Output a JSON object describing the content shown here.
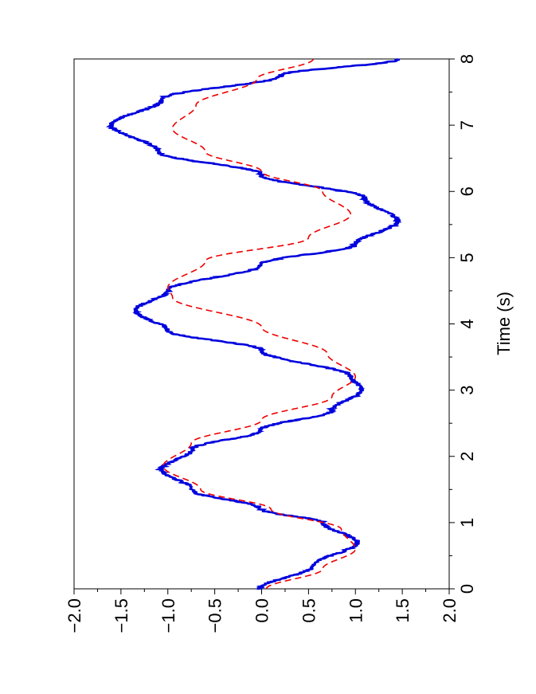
{
  "chart_data": {
    "type": "line",
    "orientation": "rotated-90-ccw",
    "xlabel": "Time (s)",
    "ylabel": "",
    "xlim": [
      0,
      8
    ],
    "ylim": [
      -2.0,
      2.0
    ],
    "x_ticks": [
      "0",
      "1",
      "2",
      "3",
      "4",
      "5",
      "6",
      "7",
      "8"
    ],
    "y_ticks": [
      "−2.0",
      "−1.5",
      "−1.0",
      "−0.5",
      "0.0",
      "0.5",
      "1.0",
      "1.5",
      "2.0"
    ],
    "grid": false,
    "series": [
      {
        "style": "solid",
        "color": "#0000dd",
        "noisy": true,
        "points": [
          [
            0,
            -0.02
          ],
          [
            0.35,
            0.55
          ],
          [
            0.7,
            1.02
          ],
          [
            1.0,
            0.65
          ],
          [
            1.2,
            0.0
          ],
          [
            1.5,
            -0.75
          ],
          [
            1.8,
            -1.07
          ],
          [
            2.1,
            -0.75
          ],
          [
            2.4,
            0.0
          ],
          [
            2.7,
            0.75
          ],
          [
            3.0,
            1.07
          ],
          [
            3.2,
            0.95
          ],
          [
            3.6,
            0.0
          ],
          [
            3.9,
            -1.0
          ],
          [
            4.2,
            -1.35
          ],
          [
            4.5,
            -1.0
          ],
          [
            4.9,
            0.0
          ],
          [
            5.2,
            1.0
          ],
          [
            5.55,
            1.45
          ],
          [
            5.9,
            1.1
          ],
          [
            6.25,
            0.0
          ],
          [
            6.6,
            -1.1
          ],
          [
            7.0,
            -1.6
          ],
          [
            7.4,
            -1.05
          ],
          [
            7.75,
            0.2
          ],
          [
            8.0,
            1.45
          ]
        ]
      },
      {
        "style": "dashed",
        "color": "#ee0000",
        "noisy": false,
        "points": [
          [
            0,
            0.05
          ],
          [
            0.3,
            0.65
          ],
          [
            0.6,
            1.0
          ],
          [
            0.9,
            0.85
          ],
          [
            1.2,
            0.1
          ],
          [
            1.5,
            -0.65
          ],
          [
            1.85,
            -1.05
          ],
          [
            2.2,
            -0.75
          ],
          [
            2.55,
            0.0
          ],
          [
            2.9,
            0.75
          ],
          [
            3.2,
            1.0
          ],
          [
            3.55,
            0.7
          ],
          [
            3.95,
            0.0
          ],
          [
            4.4,
            -0.95
          ],
          [
            4.55,
            -1.0
          ],
          [
            4.95,
            -0.6
          ],
          [
            5.3,
            0.5
          ],
          [
            5.65,
            0.95
          ],
          [
            6.0,
            0.65
          ],
          [
            6.3,
            0.0
          ],
          [
            6.6,
            -0.6
          ],
          [
            6.95,
            -0.95
          ],
          [
            7.3,
            -0.7
          ],
          [
            7.7,
            -0.05
          ],
          [
            8.0,
            0.55
          ]
        ]
      }
    ]
  }
}
